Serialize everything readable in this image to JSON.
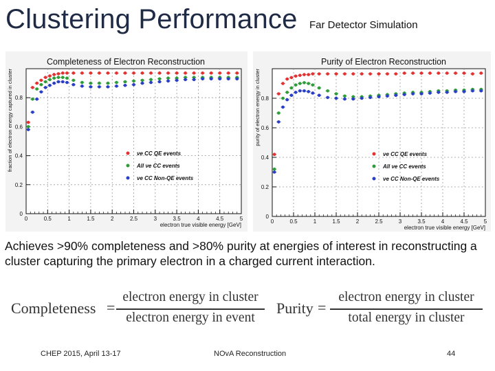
{
  "slide": {
    "title": "Clustering Performance",
    "subtitle": "Far Detector Simulation",
    "description": "Achieves >90% completeness and >80% purity at energies of interest in reconstructing a cluster capturing the primary electron in a charged current interaction.",
    "formula_completeness": {
      "lhs": "Completeness",
      "numerator": "electron energy in cluster",
      "denominator": "electron energy in event"
    },
    "formula_purity": {
      "lhs": "Purity",
      "numerator": "electron energy in cluster",
      "denominator": "total energy in cluster"
    },
    "footer": {
      "left": "CHEP 2015,  April 13-17",
      "center": "NOvA Reconstruction",
      "page": "44"
    }
  },
  "chart_data": [
    {
      "type": "scatter",
      "title": "Completeness of Electron Reconstruction",
      "xlabel": "electron true visible energy [GeV]",
      "ylabel": "fraction of electron energy captured in cluster",
      "xlim": [
        0,
        5
      ],
      "ylim": [
        0,
        1
      ],
      "xticks": [
        0,
        0.5,
        1,
        1.5,
        2,
        2.5,
        3,
        3.5,
        4,
        4.5,
        5
      ],
      "xtick_labels": [
        "0",
        "0.5",
        "1",
        "1.5",
        "2",
        "2.5",
        "3",
        "3.5",
        "4",
        "4.5",
        "5"
      ],
      "yticks": [
        0,
        0.2,
        0.4,
        0.6,
        0.8,
        1
      ],
      "ytick_labels": [
        "0",
        "0.2",
        "0.4",
        "0.6",
        "0.8",
        ""
      ],
      "legend": [
        "νe CC QE events",
        "All νe CC events",
        "νe CC Non-QE events"
      ],
      "legend_placement": "lower-right",
      "series": [
        {
          "name": "νe CC QE events",
          "color": "#e23333",
          "x": [
            0.05,
            0.15,
            0.25,
            0.35,
            0.45,
            0.55,
            0.65,
            0.75,
            0.85,
            0.95,
            1.1,
            1.3,
            1.5,
            1.7,
            1.9,
            2.1,
            2.3,
            2.5,
            2.7,
            2.9,
            3.1,
            3.3,
            3.5,
            3.7,
            3.9,
            4.1,
            4.3,
            4.5,
            4.7,
            4.9
          ],
          "y": [
            0.63,
            0.87,
            0.9,
            0.92,
            0.94,
            0.95,
            0.96,
            0.965,
            0.97,
            0.97,
            0.97,
            0.97,
            0.97,
            0.97,
            0.97,
            0.97,
            0.97,
            0.97,
            0.97,
            0.97,
            0.97,
            0.97,
            0.97,
            0.97,
            0.97,
            0.97,
            0.97,
            0.97,
            0.97,
            0.97
          ]
        },
        {
          "name": "All νe CC events",
          "color": "#2f9c3a",
          "x": [
            0.05,
            0.15,
            0.25,
            0.35,
            0.45,
            0.55,
            0.65,
            0.75,
            0.85,
            0.95,
            1.1,
            1.3,
            1.5,
            1.7,
            1.9,
            2.1,
            2.3,
            2.5,
            2.7,
            2.9,
            3.1,
            3.3,
            3.5,
            3.7,
            3.9,
            4.1,
            4.3,
            4.5,
            4.7,
            4.9
          ],
          "y": [
            0.6,
            0.79,
            0.86,
            0.89,
            0.91,
            0.925,
            0.935,
            0.94,
            0.94,
            0.935,
            0.92,
            0.905,
            0.9,
            0.9,
            0.9,
            0.905,
            0.91,
            0.915,
            0.92,
            0.925,
            0.93,
            0.935,
            0.935,
            0.94,
            0.94,
            0.94,
            0.94,
            0.94,
            0.94,
            0.94
          ]
        },
        {
          "name": "νe CC Non-QE events",
          "color": "#2a3fc4",
          "x": [
            0.05,
            0.15,
            0.25,
            0.35,
            0.45,
            0.55,
            0.65,
            0.75,
            0.85,
            0.95,
            1.1,
            1.3,
            1.5,
            1.7,
            1.9,
            2.1,
            2.3,
            2.5,
            2.7,
            2.9,
            3.1,
            3.3,
            3.5,
            3.7,
            3.9,
            4.1,
            4.3,
            4.5,
            4.7,
            4.9
          ],
          "y": [
            0.58,
            0.7,
            0.79,
            0.84,
            0.87,
            0.885,
            0.9,
            0.91,
            0.91,
            0.905,
            0.89,
            0.88,
            0.875,
            0.875,
            0.875,
            0.88,
            0.885,
            0.89,
            0.9,
            0.905,
            0.91,
            0.915,
            0.92,
            0.925,
            0.925,
            0.93,
            0.93,
            0.93,
            0.93,
            0.93
          ]
        }
      ]
    },
    {
      "type": "scatter",
      "title": "Purity of Electron Reconstruction",
      "xlabel": "electron true visible energy [GeV]",
      "ylabel": "purity of electron energy in cluster",
      "xlim": [
        0,
        5
      ],
      "ylim": [
        0,
        1
      ],
      "xticks": [
        0,
        0.5,
        1,
        1.5,
        2,
        2.5,
        3,
        3.5,
        4,
        4.5,
        5
      ],
      "xtick_labels": [
        "0",
        "0.5",
        "1",
        "1.5",
        "2",
        "2.5",
        "3",
        "3.5",
        "4",
        "4.5",
        "5"
      ],
      "yticks": [
        0,
        0.2,
        0.4,
        0.6,
        0.8,
        1
      ],
      "ytick_labels": [
        "0",
        "0.2",
        "0.4",
        "0.6",
        "0.8",
        ""
      ],
      "legend": [
        "νe CC QE events",
        "All νe CC events",
        "νe CC Non-QE events"
      ],
      "legend_placement": "lower-right",
      "series": [
        {
          "name": "νe CC QE events",
          "color": "#e23333",
          "x": [
            0.05,
            0.15,
            0.25,
            0.35,
            0.45,
            0.55,
            0.65,
            0.75,
            0.85,
            0.95,
            1.1,
            1.3,
            1.5,
            1.7,
            1.9,
            2.1,
            2.3,
            2.5,
            2.7,
            2.9,
            3.1,
            3.3,
            3.5,
            3.7,
            3.9,
            4.1,
            4.3,
            4.5,
            4.7,
            4.9
          ],
          "y": [
            0.42,
            0.83,
            0.9,
            0.93,
            0.94,
            0.95,
            0.955,
            0.96,
            0.96,
            0.965,
            0.965,
            0.965,
            0.965,
            0.965,
            0.965,
            0.965,
            0.965,
            0.965,
            0.965,
            0.965,
            0.97,
            0.97,
            0.97,
            0.97,
            0.97,
            0.97,
            0.97,
            0.97,
            0.965,
            0.97
          ]
        },
        {
          "name": "All νe CC events",
          "color": "#2f9c3a",
          "x": [
            0.05,
            0.15,
            0.25,
            0.35,
            0.45,
            0.55,
            0.65,
            0.75,
            0.85,
            0.95,
            1.1,
            1.3,
            1.5,
            1.7,
            1.9,
            2.1,
            2.3,
            2.5,
            2.7,
            2.9,
            3.1,
            3.3,
            3.5,
            3.7,
            3.9,
            4.1,
            4.3,
            4.5,
            4.7,
            4.9
          ],
          "y": [
            0.32,
            0.7,
            0.8,
            0.84,
            0.87,
            0.89,
            0.9,
            0.905,
            0.9,
            0.89,
            0.87,
            0.85,
            0.83,
            0.815,
            0.81,
            0.81,
            0.815,
            0.82,
            0.825,
            0.83,
            0.835,
            0.84,
            0.84,
            0.845,
            0.85,
            0.85,
            0.855,
            0.855,
            0.86,
            0.86
          ]
        },
        {
          "name": "νe CC Non-QE events",
          "color": "#2a3fc4",
          "x": [
            0.05,
            0.15,
            0.25,
            0.35,
            0.45,
            0.55,
            0.65,
            0.75,
            0.85,
            0.95,
            1.1,
            1.3,
            1.5,
            1.7,
            1.9,
            2.1,
            2.3,
            2.5,
            2.7,
            2.9,
            3.1,
            3.3,
            3.5,
            3.7,
            3.9,
            4.1,
            4.3,
            4.5,
            4.7,
            4.9
          ],
          "y": [
            0.3,
            0.64,
            0.74,
            0.79,
            0.82,
            0.84,
            0.85,
            0.85,
            0.845,
            0.835,
            0.82,
            0.805,
            0.8,
            0.795,
            0.795,
            0.8,
            0.805,
            0.81,
            0.815,
            0.82,
            0.825,
            0.83,
            0.83,
            0.835,
            0.84,
            0.84,
            0.845,
            0.845,
            0.85,
            0.85
          ]
        }
      ]
    }
  ]
}
